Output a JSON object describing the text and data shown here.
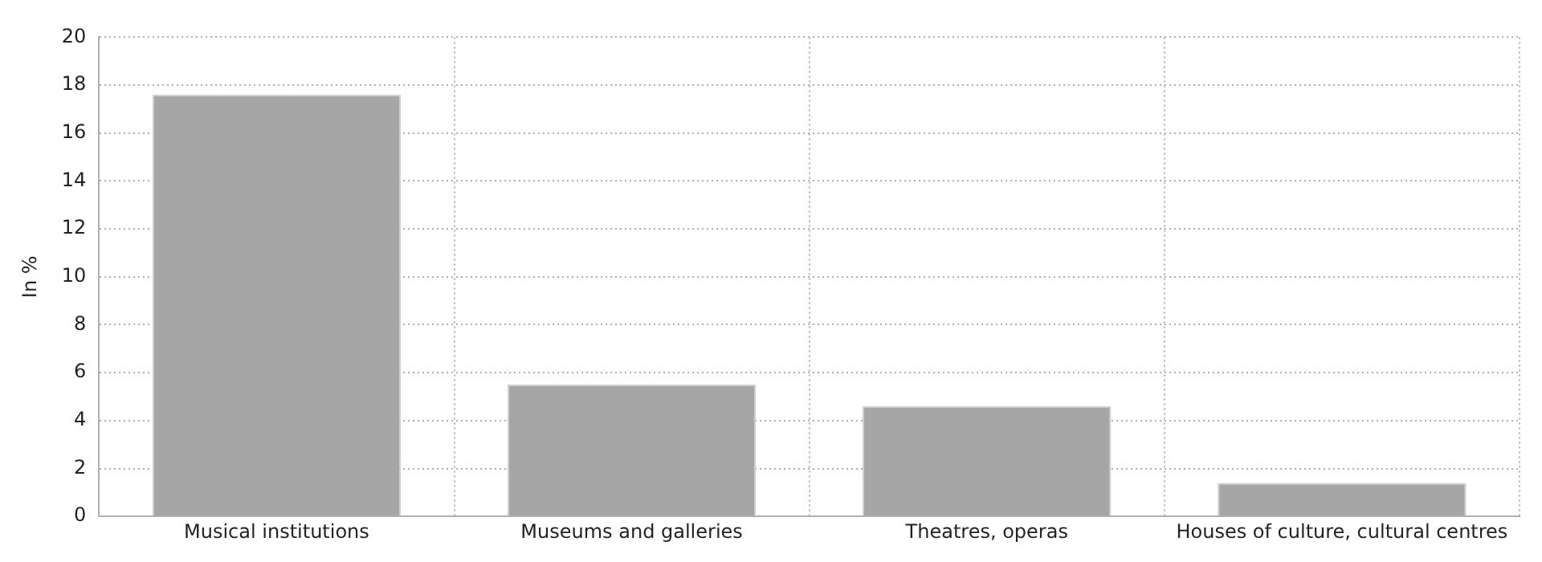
{
  "chart_data": {
    "type": "bar",
    "ylabel": "In %",
    "categories": [
      "Musical institutions",
      "Museums and galleries",
      "Theatres, operas",
      "Houses of culture, cultural centres"
    ],
    "values": [
      17.6,
      5.5,
      4.6,
      1.4
    ],
    "color": "#a6a6a6",
    "ylim": [
      0,
      20
    ],
    "yticks": [
      0,
      2,
      4,
      6,
      8,
      10,
      12,
      14,
      16,
      18,
      20
    ],
    "grid": true,
    "legend": false
  }
}
